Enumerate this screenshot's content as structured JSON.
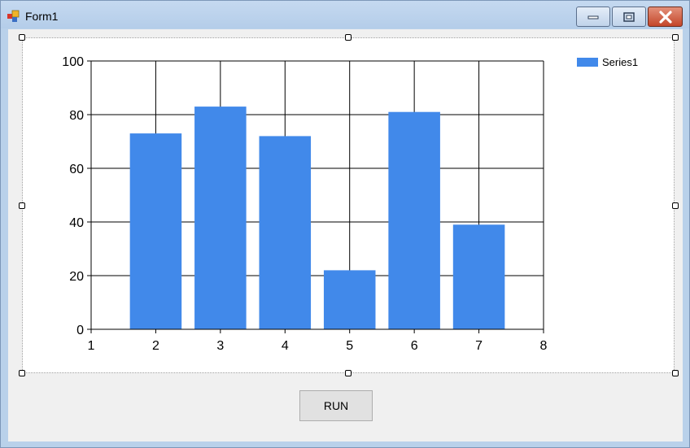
{
  "window": {
    "title": "Form1",
    "icon": "winforms-app-icon"
  },
  "titlebar_buttons": {
    "minimize": "minimize-icon",
    "maximize": "maximize-icon",
    "close": "close-icon"
  },
  "run_button": {
    "label": "RUN"
  },
  "colors": {
    "bar": "#4189ea",
    "titlebar": "#b9d1ea",
    "client": "#f0f0f0",
    "close_button": "#c4462a"
  },
  "chart_data": {
    "type": "bar",
    "x": [
      2,
      3,
      4,
      5,
      6,
      7
    ],
    "values": [
      73,
      83,
      72,
      22,
      81,
      39
    ],
    "series": [
      {
        "name": "Series1",
        "values": [
          73,
          83,
          72,
          22,
          81,
          39
        ]
      }
    ],
    "x_ticks": [
      "1",
      "2",
      "3",
      "4",
      "5",
      "6",
      "7",
      "8"
    ],
    "y_ticks": [
      "0",
      "20",
      "40",
      "60",
      "80",
      "100"
    ],
    "xlim": [
      1,
      8
    ],
    "ylim": [
      0,
      100
    ],
    "grid": true,
    "legend_position": "top-right",
    "title": "",
    "xlabel": "",
    "ylabel": ""
  }
}
